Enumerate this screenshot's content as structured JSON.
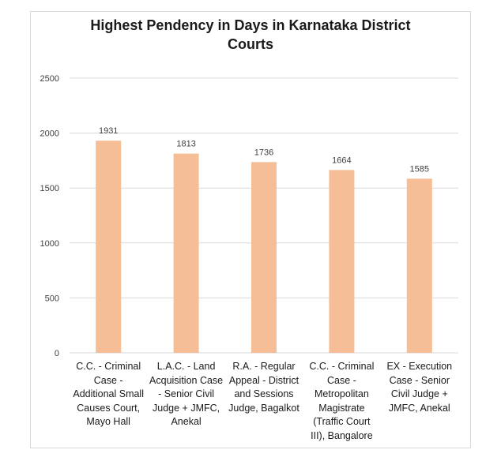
{
  "chart_data": {
    "type": "bar",
    "title_line1": "Highest Pendency in Days in Karnataka District",
    "title_line2": "Courts",
    "categories": [
      "C.C. - Criminal\nCase -\nAdditional Small\nCauses Court,\nMayo Hall",
      "L.A.C. - Land\nAcquisition Case\n- Senior Civil\nJudge +  JMFC,\nAnekal",
      "R.A. - Regular\nAppeal - District\nand Sessions\nJudge, Bagalkot",
      "C.C. - Criminal\nCase -\nMetropolitan\nMagistrate\n(Traffic Court\nIII), Bangalore",
      "EX - Execution\nCase - Senior\nCivil Judge +\nJMFC, Anekal"
    ],
    "values": [
      1931,
      1813,
      1736,
      1664,
      1585
    ],
    "data_labels": [
      "1931",
      "1813",
      "1736",
      "1664",
      "1585"
    ],
    "yticks": [
      "0",
      "500",
      "1000",
      "1500",
      "2000",
      "2500"
    ],
    "ylim": [
      0,
      2500
    ],
    "grid": true,
    "legend": "none",
    "bar_color": "#f5be96",
    "grid_color": "#d9d9d9"
  }
}
